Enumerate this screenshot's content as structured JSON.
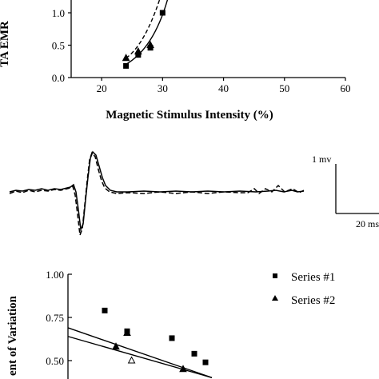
{
  "chart_data": [
    {
      "type": "scatter",
      "ylabel": "TA EMR",
      "xlabel": "Magnetic Stimulus Intensity (%)",
      "xlim": [
        15,
        60
      ],
      "ylim": [
        0,
        1.15
      ],
      "x_ticks": [
        "20",
        "30",
        "40",
        "50",
        "60"
      ],
      "y_ticks": [
        "0.0",
        "0.5",
        "1.0"
      ],
      "x_tick_values": [
        20,
        30,
        40,
        50,
        60
      ],
      "y_tick_values": [
        0,
        0.5,
        1.0
      ],
      "series": [
        {
          "marker": "square",
          "line": "solid",
          "points": [
            {
              "x": 24,
              "y": 0.18
            },
            {
              "x": 26,
              "y": 0.35
            },
            {
              "x": 28,
              "y": 0.46
            },
            {
              "x": 30,
              "y": 1.0
            }
          ]
        },
        {
          "marker": "triangle",
          "line": "dashed",
          "points": [
            {
              "x": 24,
              "y": 0.3
            },
            {
              "x": 26,
              "y": 0.4
            },
            {
              "x": 28,
              "y": 0.5
            }
          ]
        }
      ]
    },
    {
      "type": "line",
      "title": "",
      "scale_bar": {
        "vertical_label": "1 mv",
        "horizontal_label": "20 ms"
      },
      "series": [
        {
          "line": "solid"
        },
        {
          "line": "dashed"
        }
      ]
    },
    {
      "type": "scatter",
      "ylabel": "ent of Variation",
      "ylim": [
        0.25,
        1.0
      ],
      "y_ticks": [
        "1.00",
        "0.75",
        "0.50"
      ],
      "y_tick_values": [
        1.0,
        0.75,
        0.5
      ],
      "legend": {
        "placement": "top-right",
        "entries": [
          {
            "marker": "square",
            "label": "Series #1"
          },
          {
            "marker": "triangle",
            "label": "Series #2"
          }
        ]
      },
      "series": [
        {
          "name": "Series #1",
          "marker": "square",
          "points": [
            {
              "x": 1,
              "y": 0.79
            },
            {
              "x": 2,
              "y": 0.67
            },
            {
              "x": 4,
              "y": 0.63
            },
            {
              "x": 5,
              "y": 0.54
            },
            {
              "x": 5.5,
              "y": 0.49
            }
          ]
        },
        {
          "name": "Series #2",
          "marker": "triangle",
          "points": [
            {
              "x": 1.5,
              "y": 0.58
            },
            {
              "x": 2,
              "y": 0.66
            },
            {
              "x": 2.2,
              "y": 0.5,
              "open": true
            },
            {
              "x": 4.5,
              "y": 0.45
            }
          ]
        }
      ],
      "regression_lines": [
        {
          "from": {
            "x": 0,
            "y": 0.69
          },
          "to": {
            "x": 5,
            "y": 0.42
          }
        },
        {
          "from": {
            "x": 0,
            "y": 0.64
          },
          "to": {
            "x": 5,
            "y": 0.42
          }
        }
      ]
    }
  ]
}
